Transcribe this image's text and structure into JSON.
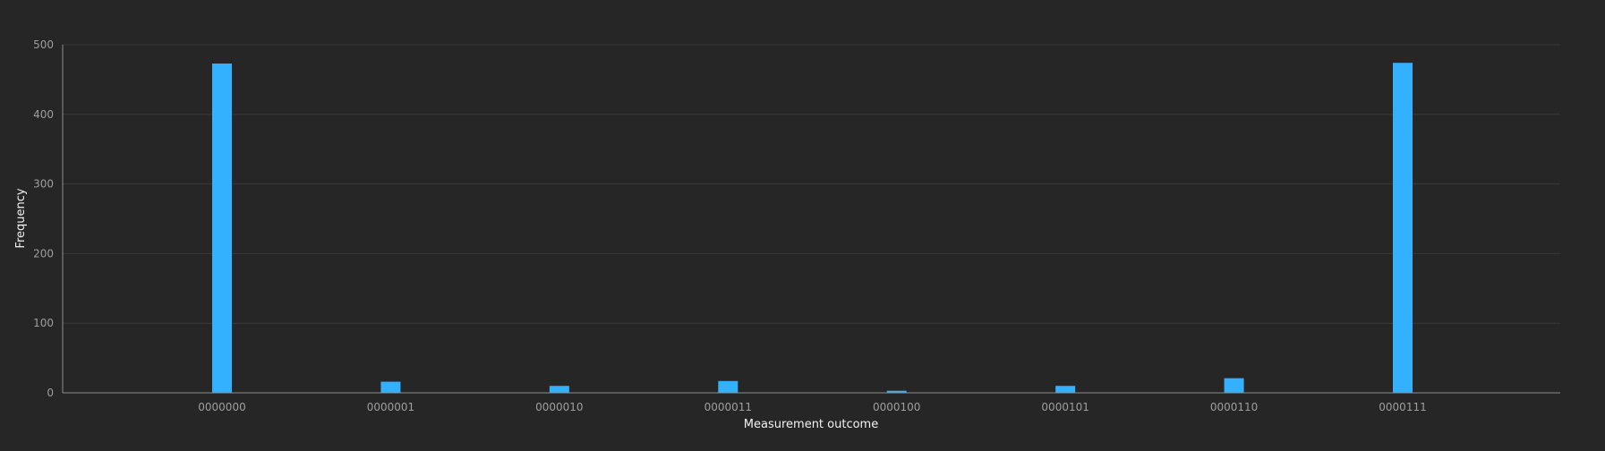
{
  "chart_data": {
    "type": "bar",
    "title": "",
    "xlabel": "Measurement outcome",
    "ylabel": "Frequency",
    "categories": [
      "0000000",
      "0000001",
      "0000010",
      "0000011",
      "0000100",
      "0000101",
      "0000110",
      "0000111"
    ],
    "values": [
      473,
      16,
      10,
      17,
      3,
      10,
      21,
      474
    ],
    "ylim": [
      0,
      500
    ],
    "yticks": [
      0,
      100,
      200,
      300,
      400,
      500
    ],
    "grid": true,
    "legend": "none",
    "bar_color": "#33b1ff",
    "background_color": "#262626"
  }
}
